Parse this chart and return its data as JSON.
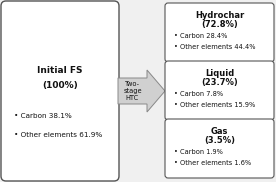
{
  "left_box": {
    "title": "Initial FS",
    "subtitle": "(100%)",
    "bullet1": "• Carbon 38.1%",
    "bullet2": "• Other elements 61.9%"
  },
  "middle_label": "Two-\nstage\nHTC",
  "right_boxes": [
    {
      "title": "Hydrochar",
      "subtitle": "(72.8%)",
      "bullet1": "• Carbon 28.4%",
      "bullet2": "• Other elements 44.4%"
    },
    {
      "title": "Liquid",
      "subtitle": "(23.7%)",
      "bullet1": "• Carbon 7.8%",
      "bullet2": "• Other elements 15.9%"
    },
    {
      "title": "Gas",
      "subtitle": "(3.5%)",
      "bullet1": "• Carbon 1.9%",
      "bullet2": "• Other elements 1.6%"
    }
  ],
  "bg_color": "#f0f0f0",
  "box_color": "#ffffff",
  "border_color": "#555555",
  "text_color": "#111111",
  "arrow_face": "#d0d0d0",
  "arrow_edge": "#888888"
}
